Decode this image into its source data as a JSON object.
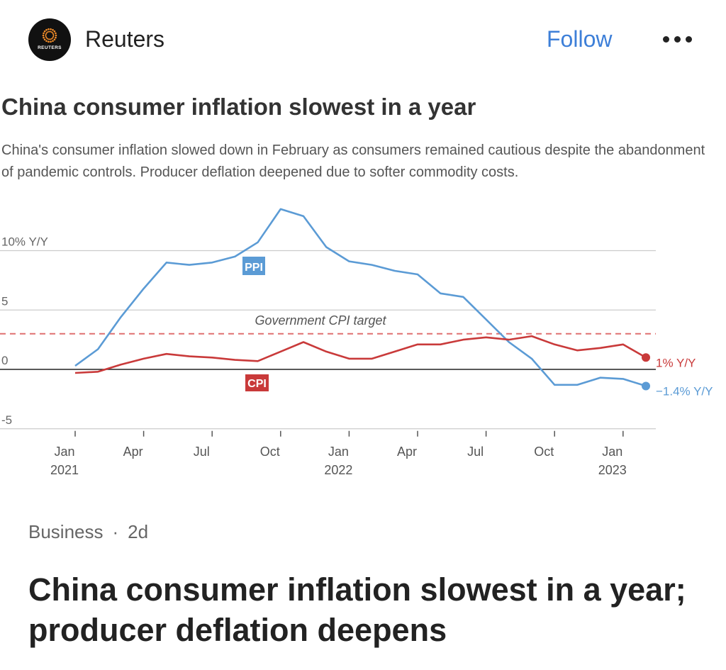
{
  "post": {
    "source_name": "Reuters",
    "logo_text": "REUTERS",
    "follow_label": "Follow",
    "category": "Business",
    "separator": "·",
    "age": "2d",
    "headline": "China consumer inflation slowest in a year; producer deflation deepens"
  },
  "chart_data": {
    "type": "line",
    "title": "China consumer inflation slowest in a year",
    "subtitle": "China's consumer inflation slowed down in February as consumers remained cautious despite the abandonment of pandemic controls. Producer deflation deepened due to softer commodity costs.",
    "ylim": [
      -5,
      10
    ],
    "yticks": [
      {
        "value": 10,
        "label": "10% Y/Y"
      },
      {
        "value": 5,
        "label": "5"
      },
      {
        "value": 0,
        "label": "0"
      },
      {
        "value": -5,
        "label": "-5"
      }
    ],
    "xticks": [
      {
        "date": "2021-01",
        "label": "Jan",
        "year": "2021"
      },
      {
        "date": "2021-04",
        "label": "Apr",
        "year": ""
      },
      {
        "date": "2021-07",
        "label": "Jul",
        "year": ""
      },
      {
        "date": "2021-10",
        "label": "Oct",
        "year": ""
      },
      {
        "date": "2022-01",
        "label": "Jan",
        "year": "2022"
      },
      {
        "date": "2022-04",
        "label": "Apr",
        "year": ""
      },
      {
        "date": "2022-07",
        "label": "Jul",
        "year": ""
      },
      {
        "date": "2022-10",
        "label": "Oct",
        "year": ""
      },
      {
        "date": "2023-01",
        "label": "Jan",
        "year": "2023"
      }
    ],
    "x": [
      "2021-01",
      "2021-02",
      "2021-03",
      "2021-04",
      "2021-05",
      "2021-06",
      "2021-07",
      "2021-08",
      "2021-09",
      "2021-10",
      "2021-11",
      "2021-12",
      "2022-01",
      "2022-02",
      "2022-03",
      "2022-04",
      "2022-05",
      "2022-06",
      "2022-07",
      "2022-08",
      "2022-09",
      "2022-10",
      "2022-11",
      "2022-12",
      "2023-01",
      "2023-02"
    ],
    "series": [
      {
        "name": "PPI",
        "color": "#5b9bd5",
        "values": [
          0.3,
          1.7,
          4.4,
          6.8,
          9.0,
          8.8,
          9.0,
          9.5,
          10.7,
          13.5,
          12.9,
          10.3,
          9.1,
          8.8,
          8.3,
          8.0,
          6.4,
          6.1,
          4.2,
          2.3,
          0.9,
          -1.3,
          -1.3,
          -0.7,
          -0.8,
          -1.4
        ],
        "end_label": "−1.4% Y/Y"
      },
      {
        "name": "CPI",
        "color": "#c93a3a",
        "values": [
          -0.3,
          -0.2,
          0.4,
          0.9,
          1.3,
          1.1,
          1.0,
          0.8,
          0.7,
          1.5,
          2.3,
          1.5,
          0.9,
          0.9,
          1.5,
          2.1,
          2.1,
          2.5,
          2.7,
          2.5,
          2.8,
          2.1,
          1.6,
          1.8,
          2.1,
          1.0
        ],
        "end_label": "1% Y/Y"
      }
    ],
    "reference_line": {
      "label": "Government CPI target",
      "value": 3.0,
      "color": "#e07070"
    }
  }
}
